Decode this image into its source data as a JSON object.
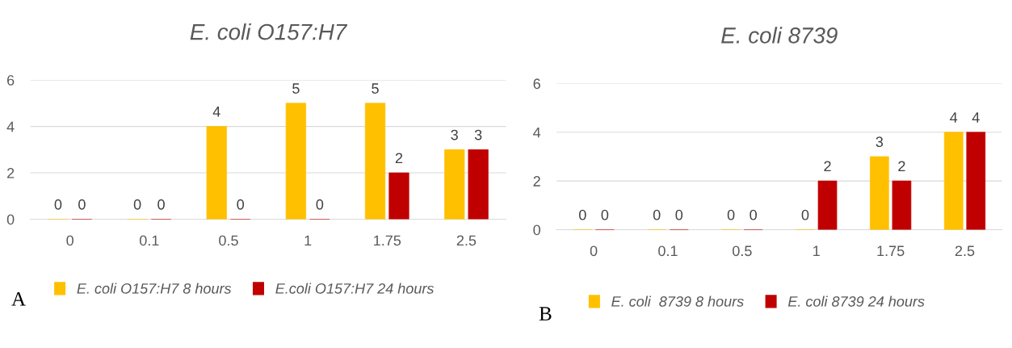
{
  "chart_data": [
    {
      "type": "bar",
      "title": "E. coli O157:H7",
      "categories": [
        "0",
        "0.1",
        "0.5",
        "1",
        "1.75",
        "2.5"
      ],
      "series": [
        {
          "name": "E. coli O157:H7 8 hours",
          "color": "#ffc000",
          "values": [
            0,
            0,
            4,
            5,
            5,
            3
          ]
        },
        {
          "name": "E.coli O157:H7 24 hours",
          "color": "#c00000",
          "values": [
            0,
            0,
            0,
            0,
            2,
            3
          ]
        }
      ],
      "ylim": [
        0,
        6
      ],
      "yticks": [
        0,
        2,
        4,
        6
      ],
      "grid": "y",
      "legend": "bottom",
      "data_labels": true,
      "annotations": [
        "A"
      ]
    },
    {
      "type": "bar",
      "title": "E. coli 8739",
      "categories": [
        "0",
        "0.1",
        "0.5",
        "1",
        "1.75",
        "2.5"
      ],
      "series": [
        {
          "name": "E. coli  8739 8 hours",
          "color": "#ffc000",
          "values": [
            0,
            0,
            0,
            0,
            3,
            4
          ]
        },
        {
          "name": "E. coli 8739 24 hours",
          "color": "#c00000",
          "values": [
            0,
            0,
            0,
            2,
            2,
            4
          ]
        }
      ],
      "ylim": [
        0,
        6
      ],
      "yticks": [
        0,
        2,
        4,
        6
      ],
      "grid": "y",
      "legend": "bottom",
      "data_labels": true,
      "annotations": [
        "B"
      ]
    }
  ]
}
